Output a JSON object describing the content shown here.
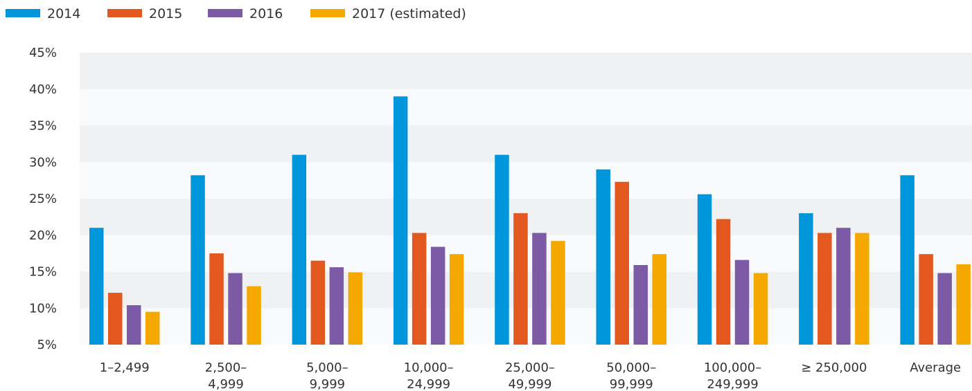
{
  "chart_data": {
    "type": "bar",
    "title": "",
    "xlabel": "",
    "ylabel": "",
    "ylim": [
      5,
      45
    ],
    "yticks": [
      "5%",
      "10%",
      "15%",
      "20%",
      "25%",
      "30%",
      "35%",
      "40%",
      "45%"
    ],
    "ytick_values": [
      5,
      10,
      15,
      20,
      25,
      30,
      35,
      40,
      45
    ],
    "grid": "alternating horizontal bands",
    "legend_position": "top-left",
    "categories": [
      [
        "1–2,499"
      ],
      [
        "2,500–",
        "4,999"
      ],
      [
        "5,000–",
        "9,999"
      ],
      [
        "10,000–",
        "24,999"
      ],
      [
        "25,000–",
        "49,999"
      ],
      [
        "50,000–",
        "99,999"
      ],
      [
        "100,000–",
        "249,999"
      ],
      [
        "≥ 250,000"
      ],
      [
        "Average"
      ]
    ],
    "series": [
      {
        "name": "2014",
        "color": "#0096dc",
        "values": [
          21,
          28.2,
          31,
          39,
          31,
          29,
          25.6,
          23,
          28.2
        ]
      },
      {
        "name": "2015",
        "color": "#e2581e",
        "values": [
          12.1,
          17.5,
          16.5,
          20.3,
          23,
          27.3,
          22.2,
          20.3,
          17.4
        ]
      },
      {
        "name": "2016",
        "color": "#7d5aa6",
        "values": [
          10.4,
          14.8,
          15.6,
          18.4,
          20.3,
          15.9,
          16.6,
          21,
          14.8
        ]
      },
      {
        "name": "2017 (estimated)",
        "color": "#f5a800",
        "values": [
          9.5,
          13,
          14.9,
          17.4,
          19.2,
          17.4,
          14.8,
          20.3,
          16
        ]
      }
    ]
  }
}
